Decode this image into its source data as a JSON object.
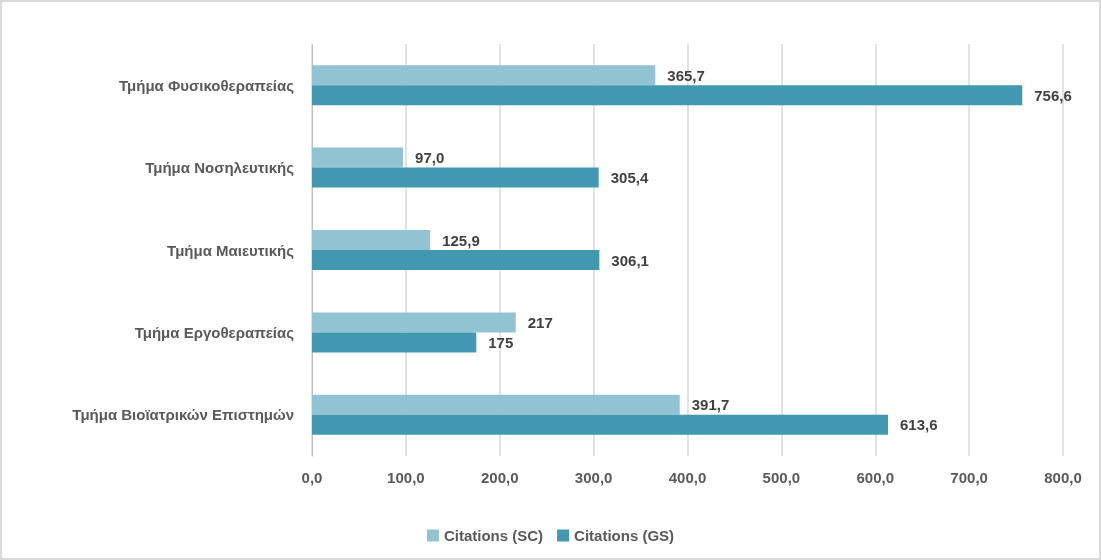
{
  "chart_data": {
    "type": "bar",
    "orientation": "horizontal",
    "categories": [
      "Τμήμα Φυσικοθεραπείας",
      "Τμήμα Νοσηλευτικής",
      "Τμήμα Μαιευτικής",
      "Τμήμα Εργοθεραπείας",
      "Τμήμα Βιοϊατρικών Επιστημών"
    ],
    "series": [
      {
        "name": "Citations (SC)",
        "color": "#92c3d3",
        "values": [
          365.7,
          97.0,
          125.9,
          217,
          391.7
        ],
        "value_labels": [
          "365,7",
          "97,0",
          "125,9",
          "217",
          "391,7"
        ]
      },
      {
        "name": "Citations (GS)",
        "color": "#4198b0",
        "values": [
          756.6,
          305.4,
          306.1,
          175,
          613.6
        ],
        "value_labels": [
          "756,6",
          "305,4",
          "306,1",
          "175",
          "613,6"
        ]
      }
    ],
    "xlim": [
      0,
      800
    ],
    "xticks": [
      {
        "value": 0,
        "label": "0,0"
      },
      {
        "value": 100,
        "label": "100,0"
      },
      {
        "value": 200,
        "label": "200,0"
      },
      {
        "value": 300,
        "label": "300,0"
      },
      {
        "value": 400,
        "label": "400,0"
      },
      {
        "value": 500,
        "label": "500,0"
      },
      {
        "value": 600,
        "label": "600,0"
      },
      {
        "value": 700,
        "label": "700,0"
      },
      {
        "value": 800,
        "label": "800,0"
      }
    ],
    "grid": "x",
    "legend": "bottom"
  }
}
